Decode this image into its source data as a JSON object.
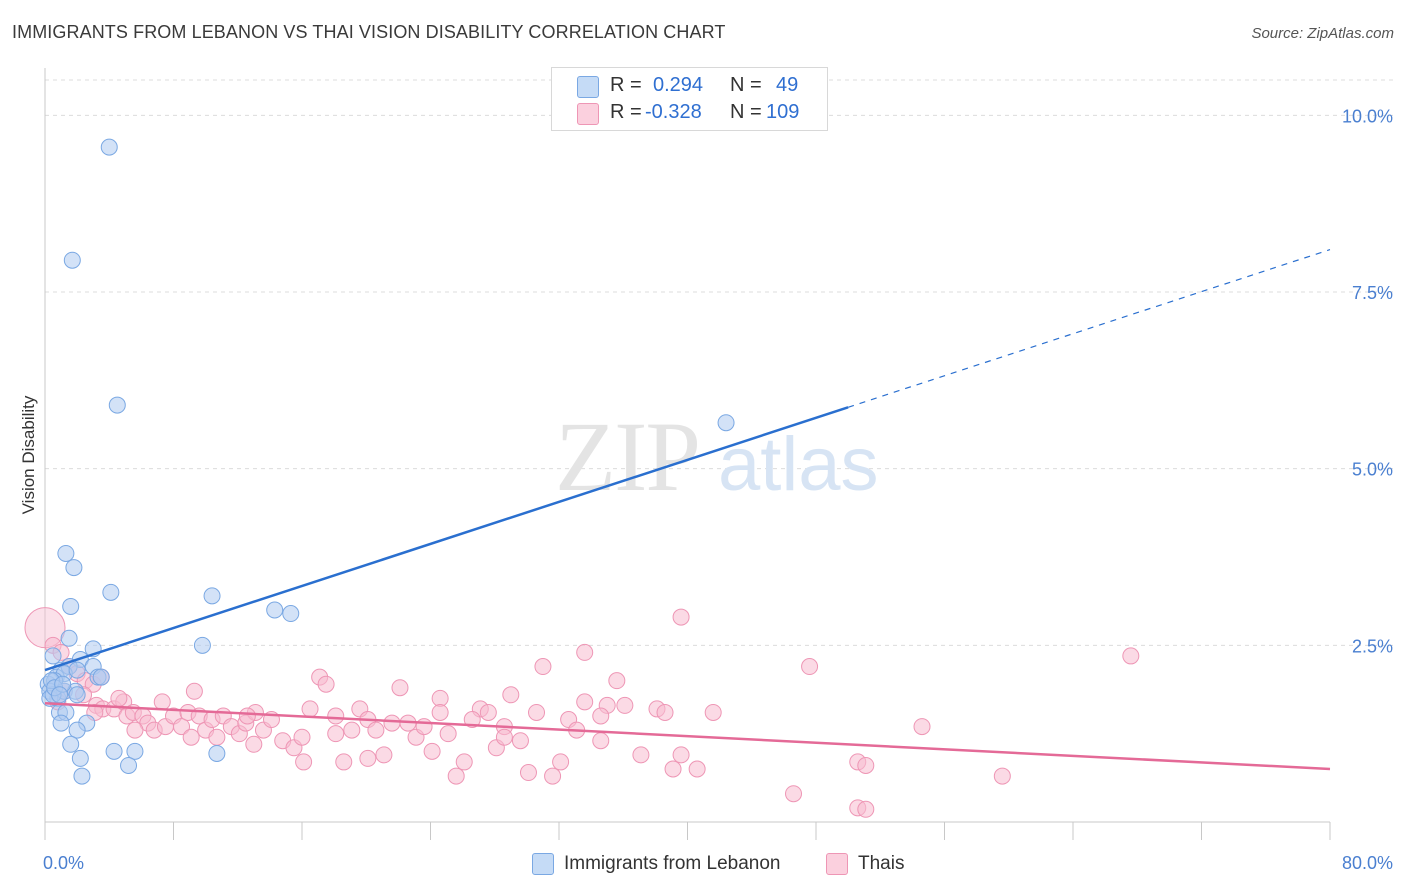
{
  "title": "IMMIGRANTS FROM LEBANON VS THAI VISION DISABILITY CORRELATION CHART",
  "source": "Source: ZipAtlas.com",
  "watermark": {
    "zip": "ZIP",
    "atlas": "atlas"
  },
  "legend": {
    "rows": [
      {
        "r_label": "R =",
        "r_value": "0.294",
        "n_label": "N =",
        "n_value": "49"
      },
      {
        "r_label": "R =",
        "r_value": "-0.328",
        "n_label": "N =",
        "n_value": "109"
      }
    ]
  },
  "bottom_legend": [
    {
      "label": "Immigrants from Lebanon"
    },
    {
      "label": "Thais"
    }
  ],
  "colors": {
    "blue_fill": "#aecbf0",
    "blue_stroke": "#7aa8e3",
    "blue_line": "#2a6fcf",
    "pink_fill": "#f7bcd0",
    "pink_stroke": "#ee96b5",
    "pink_line": "#e46a97",
    "axis_label": "#4a7fd0",
    "grid": "#dcdcdc"
  },
  "chart_data": {
    "type": "scatter",
    "title": "IMMIGRANTS FROM LEBANON VS THAI VISION DISABILITY CORRELATION CHART",
    "xlabel": "",
    "ylabel": "Vision Disability",
    "xlim": [
      0,
      80
    ],
    "ylim": [
      0,
      10.5
    ],
    "x_tick_labels": [
      "0.0%",
      "80.0%"
    ],
    "y_ticks": [
      2.5,
      5.0,
      7.5,
      10.0
    ],
    "y_tick_labels": [
      "2.5%",
      "5.0%",
      "7.5%",
      "10.0%"
    ],
    "grid": true,
    "legend_position": "top-center",
    "series": [
      {
        "name": "Immigrants from Lebanon",
        "color": "blue",
        "points": [
          [
            4.0,
            9.55
          ],
          [
            1.7,
            7.95
          ],
          [
            4.5,
            5.9
          ],
          [
            42.4,
            5.65
          ],
          [
            1.3,
            3.8
          ],
          [
            1.8,
            3.6
          ],
          [
            1.6,
            3.05
          ],
          [
            4.1,
            3.25
          ],
          [
            10.4,
            3.2
          ],
          [
            14.3,
            3.0
          ],
          [
            15.3,
            2.95
          ],
          [
            1.5,
            2.6
          ],
          [
            3.0,
            2.45
          ],
          [
            9.8,
            2.5
          ],
          [
            0.5,
            2.35
          ],
          [
            2.2,
            2.3
          ],
          [
            3.0,
            2.2
          ],
          [
            1.0,
            2.15
          ],
          [
            1.5,
            2.2
          ],
          [
            0.7,
            2.05
          ],
          [
            1.2,
            2.1
          ],
          [
            2.0,
            2.15
          ],
          [
            3.3,
            2.05
          ],
          [
            3.5,
            2.05
          ],
          [
            0.2,
            1.95
          ],
          [
            0.6,
            2.0
          ],
          [
            0.3,
            1.85
          ],
          [
            0.8,
            1.75
          ],
          [
            1.2,
            1.85
          ],
          [
            1.9,
            1.85
          ],
          [
            0.3,
            1.75
          ],
          [
            0.5,
            1.8
          ],
          [
            2.0,
            1.8
          ],
          [
            0.9,
            1.55
          ],
          [
            1.3,
            1.55
          ],
          [
            1.0,
            1.4
          ],
          [
            2.6,
            1.4
          ],
          [
            2.0,
            1.3
          ],
          [
            1.6,
            1.1
          ],
          [
            2.2,
            0.9
          ],
          [
            4.3,
            1.0
          ],
          [
            5.6,
            1.0
          ],
          [
            10.7,
            0.97
          ],
          [
            5.2,
            0.8
          ],
          [
            2.3,
            0.65
          ],
          [
            0.4,
            2.0
          ],
          [
            0.6,
            1.9
          ],
          [
            1.1,
            1.95
          ],
          [
            0.9,
            1.8
          ]
        ],
        "trend": {
          "x": [
            0,
            80
          ],
          "y": [
            2.15,
            8.1
          ],
          "solid_until_x": 50
        }
      },
      {
        "name": "Thais",
        "color": "pink",
        "points": [
          [
            0.0,
            2.75
          ],
          [
            0.5,
            2.5
          ],
          [
            1.0,
            2.4
          ],
          [
            1.5,
            2.2
          ],
          [
            2.0,
            2.1
          ],
          [
            2.5,
            2.0
          ],
          [
            3.0,
            1.95
          ],
          [
            3.5,
            2.05
          ],
          [
            1.2,
            1.85
          ],
          [
            2.4,
            1.8
          ],
          [
            0.8,
            1.7
          ],
          [
            3.2,
            1.65
          ],
          [
            3.6,
            1.6
          ],
          [
            4.3,
            1.6
          ],
          [
            4.9,
            1.7
          ],
          [
            5.1,
            1.5
          ],
          [
            5.5,
            1.55
          ],
          [
            6.1,
            1.5
          ],
          [
            6.4,
            1.4
          ],
          [
            6.8,
            1.3
          ],
          [
            7.3,
            1.7
          ],
          [
            7.5,
            1.35
          ],
          [
            8.0,
            1.5
          ],
          [
            8.5,
            1.35
          ],
          [
            8.9,
            1.55
          ],
          [
            9.3,
            1.85
          ],
          [
            9.6,
            1.5
          ],
          [
            10.0,
            1.3
          ],
          [
            10.4,
            1.45
          ],
          [
            10.7,
            1.2
          ],
          [
            11.1,
            1.5
          ],
          [
            11.6,
            1.35
          ],
          [
            12.1,
            1.25
          ],
          [
            12.5,
            1.4
          ],
          [
            13.0,
            1.1
          ],
          [
            13.6,
            1.3
          ],
          [
            14.1,
            1.45
          ],
          [
            14.8,
            1.15
          ],
          [
            15.5,
            1.05
          ],
          [
            16.0,
            1.2
          ],
          [
            16.5,
            1.6
          ],
          [
            17.1,
            2.05
          ],
          [
            17.5,
            1.95
          ],
          [
            18.1,
            1.5
          ],
          [
            18.6,
            0.85
          ],
          [
            19.1,
            1.3
          ],
          [
            19.6,
            1.6
          ],
          [
            20.1,
            1.45
          ],
          [
            20.6,
            1.3
          ],
          [
            21.1,
            0.95
          ],
          [
            21.6,
            1.4
          ],
          [
            22.1,
            1.9
          ],
          [
            22.6,
            1.4
          ],
          [
            23.1,
            1.2
          ],
          [
            23.6,
            1.35
          ],
          [
            24.1,
            1.0
          ],
          [
            24.6,
            1.75
          ],
          [
            25.1,
            1.25
          ],
          [
            25.6,
            0.65
          ],
          [
            26.1,
            0.85
          ],
          [
            27.1,
            1.6
          ],
          [
            27.6,
            1.55
          ],
          [
            28.1,
            1.05
          ],
          [
            28.6,
            1.35
          ],
          [
            29.0,
            1.8
          ],
          [
            29.6,
            1.15
          ],
          [
            30.1,
            0.7
          ],
          [
            30.6,
            1.55
          ],
          [
            31.0,
            2.2
          ],
          [
            31.6,
            0.65
          ],
          [
            32.1,
            0.85
          ],
          [
            32.6,
            1.45
          ],
          [
            33.1,
            1.3
          ],
          [
            33.6,
            1.7
          ],
          [
            34.6,
            1.15
          ],
          [
            35.0,
            1.65
          ],
          [
            35.6,
            2.0
          ],
          [
            36.1,
            1.65
          ],
          [
            37.1,
            0.95
          ],
          [
            38.1,
            1.6
          ],
          [
            38.6,
            1.55
          ],
          [
            39.1,
            0.75
          ],
          [
            39.6,
            0.95
          ],
          [
            40.6,
            0.75
          ],
          [
            41.6,
            1.55
          ],
          [
            39.6,
            2.9
          ],
          [
            33.6,
            2.4
          ],
          [
            47.6,
            2.2
          ],
          [
            67.6,
            2.35
          ],
          [
            54.6,
            1.35
          ],
          [
            50.6,
            0.85
          ],
          [
            51.1,
            0.8
          ],
          [
            59.6,
            0.65
          ],
          [
            46.6,
            0.4
          ],
          [
            50.6,
            0.2
          ],
          [
            51.1,
            0.18
          ],
          [
            18.1,
            1.25
          ],
          [
            20.1,
            0.9
          ],
          [
            16.1,
            0.85
          ],
          [
            13.1,
            1.55
          ],
          [
            5.6,
            1.3
          ],
          [
            4.6,
            1.75
          ],
          [
            3.1,
            1.55
          ],
          [
            9.1,
            1.2
          ],
          [
            12.6,
            1.5
          ],
          [
            24.6,
            1.55
          ],
          [
            26.6,
            1.45
          ],
          [
            28.6,
            1.2
          ],
          [
            34.6,
            1.5
          ]
        ],
        "trend": {
          "x": [
            0,
            80
          ],
          "y": [
            1.68,
            0.75
          ]
        }
      }
    ]
  }
}
